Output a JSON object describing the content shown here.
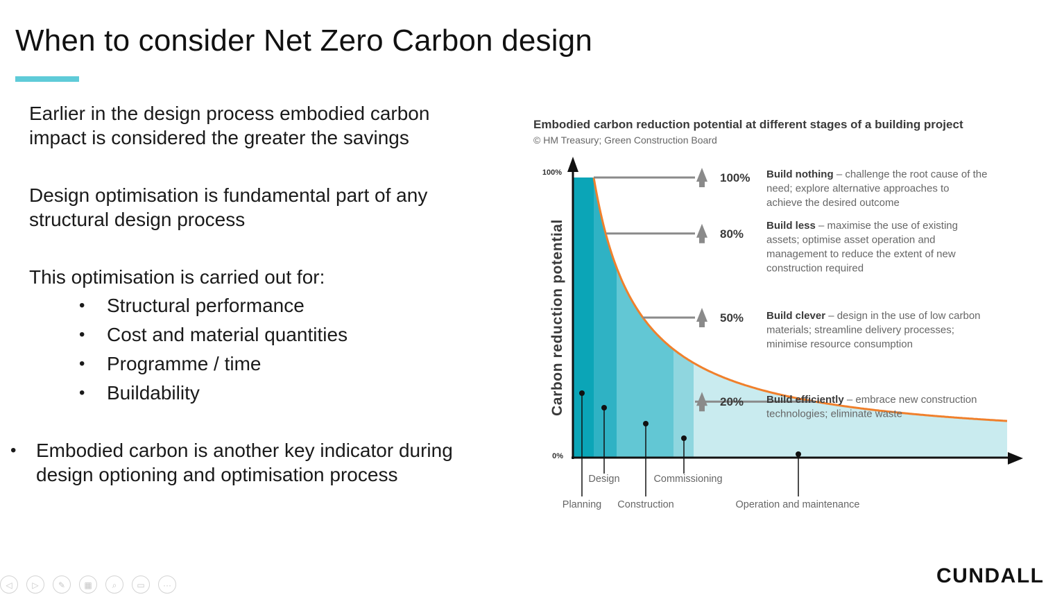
{
  "slide": {
    "title": "When to consider Net Zero Carbon design",
    "accent_color": "#5fcbd8",
    "paragraph1": "Earlier in the design process embodied carbon impact is considered the greater the savings",
    "paragraph2": "Design optimisation is fundamental part of any structural design process",
    "paragraph3": "This optimisation is carried out for:",
    "sub_bullets": [
      "Structural performance",
      "Cost and material quantities",
      "Programme / time",
      "Buildability"
    ],
    "bullet": "Embodied carbon is another key indicator during design optioning and optimisation process"
  },
  "chart_data": {
    "type": "area",
    "title": "Embodied carbon reduction potential at different stages of a building project",
    "subtitle": "© HM Treasury; Green Construction Board",
    "ylabel": "Carbon reduction potential",
    "y_tick_labels": [
      "100%",
      "0%"
    ],
    "ylim": [
      0,
      100
    ],
    "curve_color": "#f0802c",
    "stages": [
      {
        "name": "Planning",
        "fill": "#0ba5b7",
        "label_row": "lower"
      },
      {
        "name": "Design",
        "fill": "#2fb2c4",
        "label_row": "upper"
      },
      {
        "name": "Construction",
        "fill": "#62c7d4",
        "label_row": "lower"
      },
      {
        "name": "Commissioning",
        "fill": "#8fd6df",
        "label_row": "upper"
      },
      {
        "name": "Operation and maintenance",
        "fill": "#c9ebef",
        "label_row": "lower"
      }
    ],
    "levels": [
      {
        "value": 100,
        "percent": "100%",
        "heading": "Build nothing",
        "description": "– challenge the root cause of the need; explore alternative approaches to achieve the desired outcome"
      },
      {
        "value": 80,
        "percent": "80%",
        "heading": "Build less",
        "description": "– maximise the use of existing assets; optimise asset operation and management to reduce the extent of new construction required"
      },
      {
        "value": 50,
        "percent": "50%",
        "heading": "Build clever",
        "description": "– design in the use of low carbon materials; streamline delivery processes; minimise resource consumption"
      },
      {
        "value": 20,
        "percent": "20%",
        "heading": "Build efficiently",
        "description": "– embrace new construction technologies; eliminate waste"
      }
    ]
  },
  "toolbar": {
    "icons": [
      "previous-icon",
      "next-icon",
      "pen-icon",
      "slides-icon",
      "zoom-icon",
      "subtitles-icon",
      "more-icon"
    ],
    "glyphs": [
      "◁",
      "▷",
      "✎",
      "▦",
      "⌕",
      "▭",
      "···"
    ]
  },
  "logo": {
    "text": "CUNDALL"
  }
}
